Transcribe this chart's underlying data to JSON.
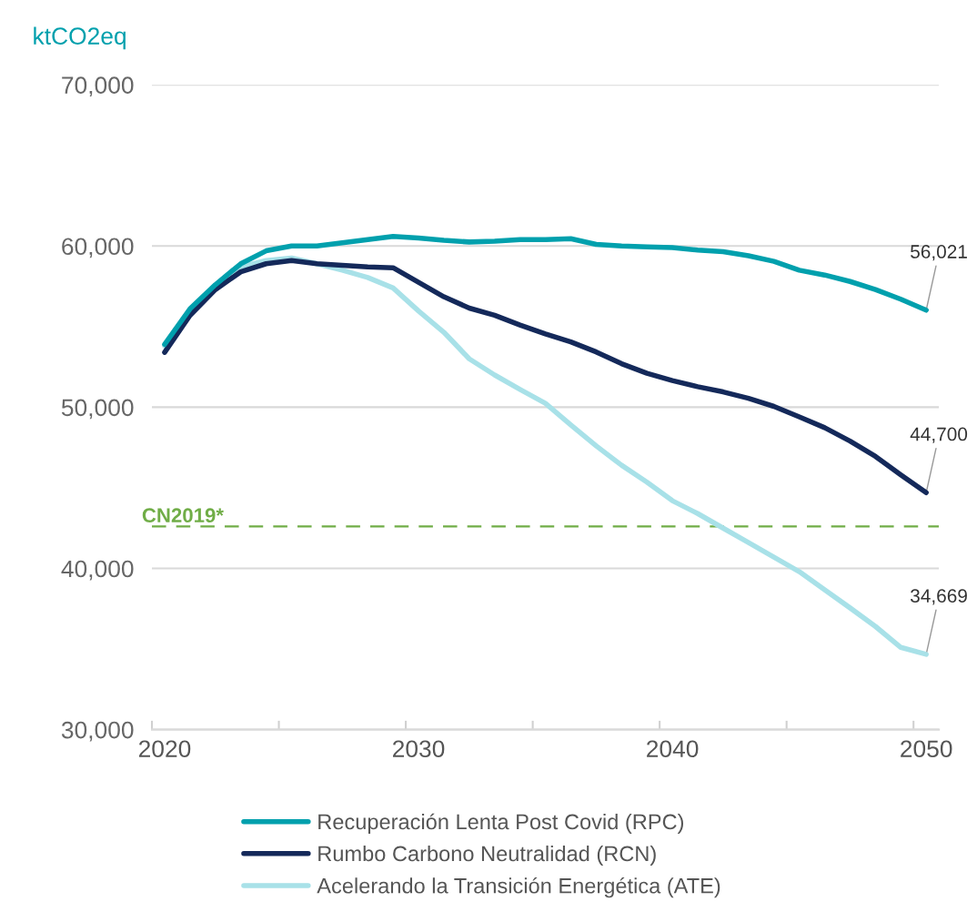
{
  "chart_data": {
    "type": "line",
    "ylabel": "ktCO2eq",
    "x": [
      2020,
      2021,
      2022,
      2023,
      2024,
      2025,
      2026,
      2027,
      2028,
      2029,
      2030,
      2031,
      2032,
      2033,
      2034,
      2035,
      2036,
      2037,
      2038,
      2039,
      2040,
      2041,
      2042,
      2043,
      2044,
      2045,
      2046,
      2047,
      2048,
      2049,
      2050
    ],
    "series": [
      {
        "name": "Recuperación Lenta Post Covid (RPC)",
        "color": "#00a0ad",
        "values": [
          53900,
          56100,
          57600,
          58900,
          59700,
          60000,
          60000,
          60200,
          60400,
          60600,
          60500,
          60350,
          60250,
          60300,
          60400,
          60400,
          60450,
          60100,
          60000,
          59950,
          59900,
          59750,
          59650,
          59400,
          59050,
          58500,
          58200,
          57800,
          57300,
          56700,
          56021
        ],
        "value_labels": [
          null,
          null,
          null,
          null,
          null,
          null,
          null,
          null,
          null,
          null,
          null,
          null,
          null,
          null,
          null,
          null,
          null,
          null,
          null,
          null,
          null,
          null,
          null,
          null,
          null,
          null,
          null,
          null,
          null,
          null,
          "56,021"
        ]
      },
      {
        "name": "Rumbo Carbono Neutralidad (RCN)",
        "color": "#14295a",
        "values": [
          53400,
          55700,
          57300,
          58400,
          58900,
          59100,
          58900,
          58800,
          58700,
          58650,
          57750,
          56850,
          56150,
          55700,
          55100,
          54550,
          54050,
          53430,
          52700,
          52100,
          51650,
          51270,
          50950,
          50550,
          50050,
          49400,
          48730,
          47900,
          46950,
          45800,
          44700
        ],
        "value_labels": [
          null,
          null,
          null,
          null,
          null,
          null,
          null,
          null,
          null,
          null,
          null,
          null,
          null,
          null,
          null,
          null,
          null,
          null,
          null,
          null,
          null,
          null,
          null,
          null,
          null,
          null,
          null,
          null,
          null,
          null,
          "44,700"
        ]
      },
      {
        "name": "Acelerando la Transición Energética (ATE)",
        "color": "#a8e1e8",
        "values": [
          53800,
          56000,
          57500,
          58700,
          59100,
          59250,
          58900,
          58500,
          58050,
          57400,
          55970,
          54650,
          53000,
          52000,
          51100,
          50240,
          48900,
          47600,
          46400,
          45350,
          44200,
          43400,
          42500,
          41600,
          40700,
          39800,
          38670,
          37550,
          36400,
          35100,
          34669
        ],
        "value_labels": [
          null,
          null,
          null,
          null,
          null,
          null,
          null,
          null,
          null,
          null,
          null,
          null,
          null,
          null,
          null,
          null,
          null,
          null,
          null,
          null,
          null,
          null,
          null,
          null,
          null,
          null,
          null,
          null,
          null,
          null,
          "34,669"
        ]
      }
    ],
    "xlim": [
      2019.5,
      2050.5
    ],
    "xticks": [
      {
        "value": 2019.5,
        "label": null
      },
      {
        "value": 2024.5,
        "label": null
      },
      {
        "value": 2029.5,
        "label": null
      },
      {
        "value": 2034.5,
        "label": null
      },
      {
        "value": 2039.5,
        "label": null
      },
      {
        "value": 2044.5,
        "label": null
      },
      {
        "value": 2049.5,
        "label": null
      },
      2020,
      2030,
      2040,
      2050
    ],
    "ylim": [
      30000,
      70000
    ],
    "yticks": [
      {
        "value": 30000,
        "label": "30,000"
      },
      {
        "value": 40000,
        "label": "40,000"
      },
      {
        "value": 50000,
        "label": "50,000"
      },
      {
        "value": 60000,
        "label": "60,000"
      },
      {
        "value": 70000,
        "label": "70,000"
      }
    ],
    "ref_lines": [
      {
        "axis": "y",
        "value": 42600,
        "label": "CN2019*",
        "color": "#70ad47",
        "line_style": "dashed"
      }
    ],
    "grid": "y",
    "legend": "bottom",
    "marker": "none",
    "line_style": "solid"
  }
}
